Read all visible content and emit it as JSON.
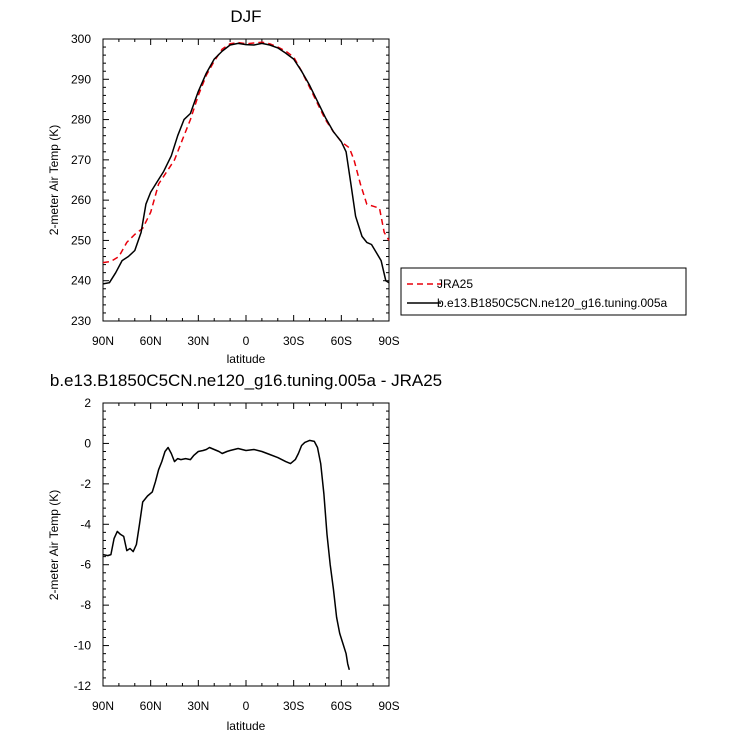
{
  "chart_data": [
    {
      "type": "line",
      "title": "DJF",
      "xlabel": "latitude",
      "ylabel": "2-meter Air Temp (K)",
      "xlim": [
        90,
        -90
      ],
      "ylim": [
        230,
        300
      ],
      "x_ticks": [
        90,
        60,
        30,
        0,
        -30,
        -60,
        -90
      ],
      "x_tick_labels": [
        "90N",
        "60N",
        "30N",
        "0",
        "30S",
        "60S",
        "90S"
      ],
      "y_ticks": [
        230,
        240,
        250,
        260,
        270,
        280,
        290,
        300
      ],
      "y_tick_labels": [
        "230",
        "240",
        "250",
        "260",
        "270",
        "280",
        "290",
        "300"
      ],
      "grid": false,
      "legend_position": "right",
      "series": [
        {
          "name": "JRA25",
          "color": "#e8000b",
          "dashed": true,
          "points": [
            [
              90,
              244.5
            ],
            [
              85,
              244.8
            ],
            [
              80,
              246.0
            ],
            [
              75,
              249.5
            ],
            [
              70,
              251.5
            ],
            [
              65,
              253.0
            ],
            [
              60,
              257.0
            ],
            [
              55,
              264.0
            ],
            [
              50,
              267.0
            ],
            [
              45,
              270.0
            ],
            [
              40,
              275.0
            ],
            [
              35,
              280.0
            ],
            [
              30,
              286.0
            ],
            [
              25,
              291.0
            ],
            [
              20,
              294.5
            ],
            [
              15,
              297.5
            ],
            [
              10,
              298.8
            ],
            [
              5,
              299.1
            ],
            [
              0,
              298.8
            ],
            [
              -5,
              299.0
            ],
            [
              -10,
              299.2
            ],
            [
              -15,
              298.8
            ],
            [
              -20,
              298.0
            ],
            [
              -25,
              297.0
            ],
            [
              -30,
              295.5
            ],
            [
              -35,
              292.0
            ],
            [
              -40,
              288.0
            ],
            [
              -45,
              284.0
            ],
            [
              -50,
              280.0
            ],
            [
              -55,
              277.0
            ],
            [
              -60,
              274.5
            ],
            [
              -65,
              273.0
            ],
            [
              -68,
              270.0
            ],
            [
              -72,
              264.0
            ],
            [
              -76,
              259.0
            ],
            [
              -80,
              258.5
            ],
            [
              -84,
              258.0
            ],
            [
              -87,
              252.0
            ],
            [
              -90,
              250.0
            ]
          ]
        },
        {
          "name": "b.e13.B1850C5CN.ne120_g16.tuning.005a",
          "color": "#000000",
          "dashed": false,
          "points": [
            [
              90,
              239.2
            ],
            [
              86,
              239.5
            ],
            [
              82,
              242.0
            ],
            [
              78,
              245.0
            ],
            [
              74,
              246.0
            ],
            [
              70,
              247.5
            ],
            [
              66,
              252.0
            ],
            [
              63,
              259.0
            ],
            [
              60,
              262.0
            ],
            [
              56,
              264.5
            ],
            [
              52,
              267.0
            ],
            [
              47,
              271.0
            ],
            [
              43,
              276.0
            ],
            [
              39,
              280.0
            ],
            [
              35,
              281.5
            ],
            [
              30,
              287.0
            ],
            [
              25,
              291.5
            ],
            [
              20,
              295.0
            ],
            [
              15,
              297.0
            ],
            [
              10,
              298.5
            ],
            [
              5,
              298.9
            ],
            [
              0,
              298.6
            ],
            [
              -5,
              298.5
            ],
            [
              -10,
              298.9
            ],
            [
              -15,
              298.5
            ],
            [
              -20,
              297.8
            ],
            [
              -25,
              296.5
            ],
            [
              -30,
              295.0
            ],
            [
              -35,
              292.0
            ],
            [
              -40,
              288.5
            ],
            [
              -45,
              284.5
            ],
            [
              -50,
              280.5
            ],
            [
              -55,
              277.0
            ],
            [
              -60,
              274.5
            ],
            [
              -63,
              272.0
            ],
            [
              -66,
              264.0
            ],
            [
              -69,
              256.0
            ],
            [
              -73,
              251.0
            ],
            [
              -76,
              249.5
            ],
            [
              -79,
              249.0
            ],
            [
              -82,
              247.0
            ],
            [
              -85,
              245.0
            ],
            [
              -88,
              240.0
            ],
            [
              -90,
              239.5
            ]
          ]
        }
      ]
    },
    {
      "type": "line",
      "title": "b.e13.B1850C5CN.ne120_g16.tuning.005a - JRA25",
      "xlabel": "latitude",
      "ylabel": "2-meter Air Temp (K)",
      "xlim": [
        90,
        -90
      ],
      "ylim": [
        -12,
        2
      ],
      "x_ticks": [
        90,
        60,
        30,
        0,
        -30,
        -60,
        -90
      ],
      "x_tick_labels": [
        "90N",
        "60N",
        "30N",
        "0",
        "30S",
        "60S",
        "90S"
      ],
      "y_ticks": [
        -12,
        -10,
        -8,
        -6,
        -4,
        -2,
        0,
        2
      ],
      "y_tick_labels": [
        "-12",
        "-10",
        "-8",
        "-6",
        "-4",
        "-2",
        "0",
        "2"
      ],
      "grid": false,
      "series": [
        {
          "color": "#000000",
          "dashed": false,
          "points": [
            [
              90,
              -5.5
            ],
            [
              87,
              -5.55
            ],
            [
              85,
              -5.5
            ],
            [
              83,
              -4.7
            ],
            [
              81,
              -4.35
            ],
            [
              79,
              -4.5
            ],
            [
              77,
              -4.6
            ],
            [
              75,
              -5.3
            ],
            [
              73,
              -5.2
            ],
            [
              71,
              -5.35
            ],
            [
              69,
              -5.0
            ],
            [
              67,
              -4.0
            ],
            [
              65,
              -2.9
            ],
            [
              62,
              -2.6
            ],
            [
              59,
              -2.4
            ],
            [
              57,
              -1.9
            ],
            [
              55,
              -1.3
            ],
            [
              53,
              -0.9
            ],
            [
              51,
              -0.4
            ],
            [
              49,
              -0.2
            ],
            [
              47,
              -0.5
            ],
            [
              45,
              -0.9
            ],
            [
              43,
              -0.75
            ],
            [
              41,
              -0.8
            ],
            [
              38,
              -0.75
            ],
            [
              35,
              -0.8
            ],
            [
              33,
              -0.6
            ],
            [
              30,
              -0.4
            ],
            [
              27,
              -0.35
            ],
            [
              25,
              -0.3
            ],
            [
              23,
              -0.2
            ],
            [
              20,
              -0.3
            ],
            [
              17,
              -0.4
            ],
            [
              15,
              -0.5
            ],
            [
              12,
              -0.4
            ],
            [
              10,
              -0.35
            ],
            [
              5,
              -0.25
            ],
            [
              0,
              -0.35
            ],
            [
              -5,
              -0.3
            ],
            [
              -10,
              -0.4
            ],
            [
              -15,
              -0.55
            ],
            [
              -20,
              -0.7
            ],
            [
              -25,
              -0.9
            ],
            [
              -28,
              -1.0
            ],
            [
              -31,
              -0.8
            ],
            [
              -33,
              -0.5
            ],
            [
              -35,
              -0.1
            ],
            [
              -37,
              0.05
            ],
            [
              -40,
              0.15
            ],
            [
              -43,
              0.1
            ],
            [
              -45,
              -0.2
            ],
            [
              -47,
              -1.0
            ],
            [
              -49,
              -2.5
            ],
            [
              -51,
              -4.5
            ],
            [
              -53,
              -6.0
            ],
            [
              -55,
              -7.2
            ],
            [
              -57,
              -8.6
            ],
            [
              -59,
              -9.4
            ],
            [
              -61,
              -9.9
            ],
            [
              -63,
              -10.4
            ],
            [
              -64,
              -10.9
            ],
            [
              -65,
              -11.2
            ]
          ]
        }
      ]
    }
  ]
}
